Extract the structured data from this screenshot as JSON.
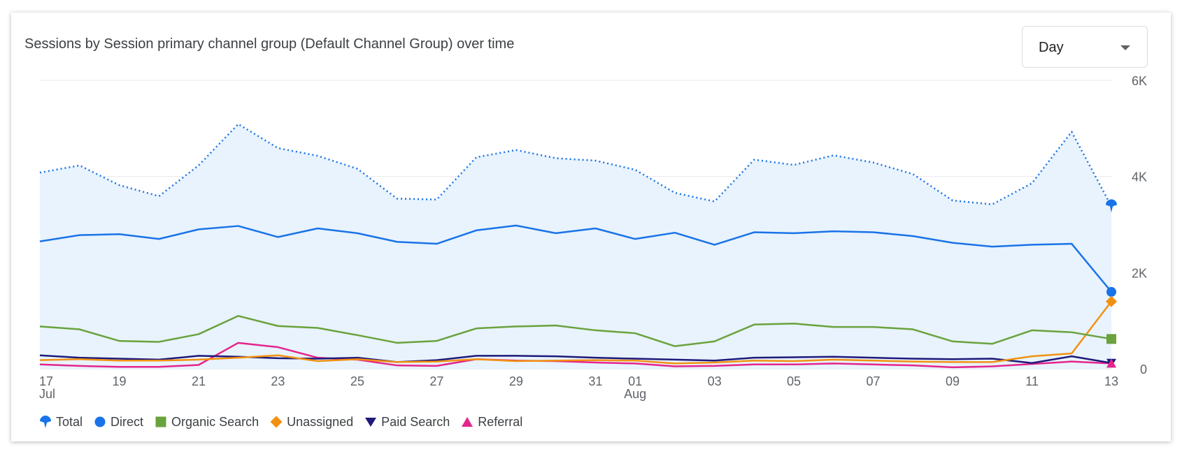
{
  "header": {
    "title": "Sessions by Session primary channel group (Default Channel Group) over time"
  },
  "granularity": {
    "selected": "Day"
  },
  "legend": [
    {
      "name": "Total",
      "color": "#1a73e8",
      "icon": "total-pin-icon"
    },
    {
      "name": "Direct",
      "color": "#1a73e8",
      "icon": "circle-icon"
    },
    {
      "name": "Organic Search",
      "color": "#6aa23d",
      "icon": "square-icon"
    },
    {
      "name": "Unassigned",
      "color": "#f29111",
      "icon": "diamond-icon"
    },
    {
      "name": "Paid Search",
      "color": "#1e1a7a",
      "icon": "triangle-down-icon"
    },
    {
      "name": "Referral",
      "color": "#e5258c",
      "icon": "triangle-up-icon"
    }
  ],
  "chart_data": {
    "type": "line",
    "title": "Sessions by Session primary channel group (Default Channel Group) over time",
    "x": [
      "Jul 17",
      "Jul 18",
      "Jul 19",
      "Jul 20",
      "Jul 21",
      "Jul 22",
      "Jul 23",
      "Jul 24",
      "Jul 25",
      "Jul 26",
      "Jul 27",
      "Jul 28",
      "Jul 29",
      "Jul 30",
      "Jul 31",
      "Aug 01",
      "Aug 02",
      "Aug 03",
      "Aug 04",
      "Aug 05",
      "Aug 06",
      "Aug 07",
      "Aug 08",
      "Aug 09",
      "Aug 10",
      "Aug 11",
      "Aug 12",
      "Aug 13"
    ],
    "x_tick_labels": [
      {
        "index": 0,
        "label": "17",
        "sublabel": "Jul"
      },
      {
        "index": 2,
        "label": "19",
        "sublabel": ""
      },
      {
        "index": 4,
        "label": "21",
        "sublabel": ""
      },
      {
        "index": 6,
        "label": "23",
        "sublabel": ""
      },
      {
        "index": 8,
        "label": "25",
        "sublabel": ""
      },
      {
        "index": 10,
        "label": "27",
        "sublabel": ""
      },
      {
        "index": 12,
        "label": "29",
        "sublabel": ""
      },
      {
        "index": 14,
        "label": "31",
        "sublabel": ""
      },
      {
        "index": 15,
        "label": "01",
        "sublabel": "Aug"
      },
      {
        "index": 17,
        "label": "03",
        "sublabel": ""
      },
      {
        "index": 19,
        "label": "05",
        "sublabel": ""
      },
      {
        "index": 21,
        "label": "07",
        "sublabel": ""
      },
      {
        "index": 23,
        "label": "09",
        "sublabel": ""
      },
      {
        "index": 25,
        "label": "11",
        "sublabel": ""
      },
      {
        "index": 27,
        "label": "13",
        "sublabel": ""
      }
    ],
    "y_ticks": [
      {
        "value": 0,
        "label": "0"
      },
      {
        "value": 2000,
        "label": "2K"
      },
      {
        "value": 4000,
        "label": "4K"
      },
      {
        "value": 6000,
        "label": "6K"
      }
    ],
    "ylim": [
      0,
      6000
    ],
    "grid": true,
    "legend_position": "bottom-left",
    "series": [
      {
        "name": "Total",
        "style": "dotted-area",
        "color": "#1a73e8",
        "values": [
          4080,
          4230,
          3820,
          3590,
          4230,
          5090,
          4590,
          4430,
          4160,
          3540,
          3520,
          4400,
          4550,
          4380,
          4330,
          4140,
          3660,
          3480,
          4350,
          4240,
          4440,
          4290,
          4050,
          3500,
          3420,
          3860,
          4930,
          3380
        ]
      },
      {
        "name": "Direct",
        "style": "solid",
        "color": "#1a73e8",
        "values": [
          2650,
          2780,
          2800,
          2700,
          2900,
          2970,
          2740,
          2920,
          2820,
          2640,
          2600,
          2880,
          2980,
          2820,
          2920,
          2700,
          2830,
          2580,
          2840,
          2820,
          2860,
          2840,
          2760,
          2620,
          2540,
          2580,
          2600,
          1600
        ]
      },
      {
        "name": "Organic Search",
        "style": "solid",
        "color": "#6aa23d",
        "values": [
          880,
          820,
          580,
          560,
          720,
          1100,
          890,
          850,
          700,
          540,
          580,
          840,
          880,
          900,
          800,
          740,
          470,
          570,
          920,
          940,
          870,
          870,
          820,
          570,
          520,
          800,
          760,
          620
        ]
      },
      {
        "name": "Unassigned",
        "style": "solid",
        "color": "#f29111",
        "values": [
          180,
          200,
          170,
          170,
          190,
          230,
          280,
          160,
          200,
          140,
          150,
          200,
          160,
          170,
          180,
          170,
          110,
          130,
          170,
          160,
          190,
          170,
          150,
          140,
          140,
          260,
          320,
          1400
        ]
      },
      {
        "name": "Paid Search",
        "style": "solid",
        "color": "#1e1a7a",
        "values": [
          280,
          230,
          210,
          190,
          270,
          250,
          220,
          210,
          230,
          140,
          180,
          270,
          270,
          260,
          230,
          210,
          190,
          170,
          230,
          240,
          250,
          230,
          210,
          200,
          210,
          120,
          260,
          120
        ]
      },
      {
        "name": "Referral",
        "style": "solid",
        "color": "#e5258c",
        "values": [
          90,
          60,
          40,
          40,
          80,
          540,
          450,
          230,
          190,
          70,
          60,
          200,
          170,
          160,
          130,
          110,
          50,
          60,
          90,
          90,
          110,
          90,
          70,
          30,
          50,
          100,
          150,
          110
        ]
      }
    ]
  }
}
